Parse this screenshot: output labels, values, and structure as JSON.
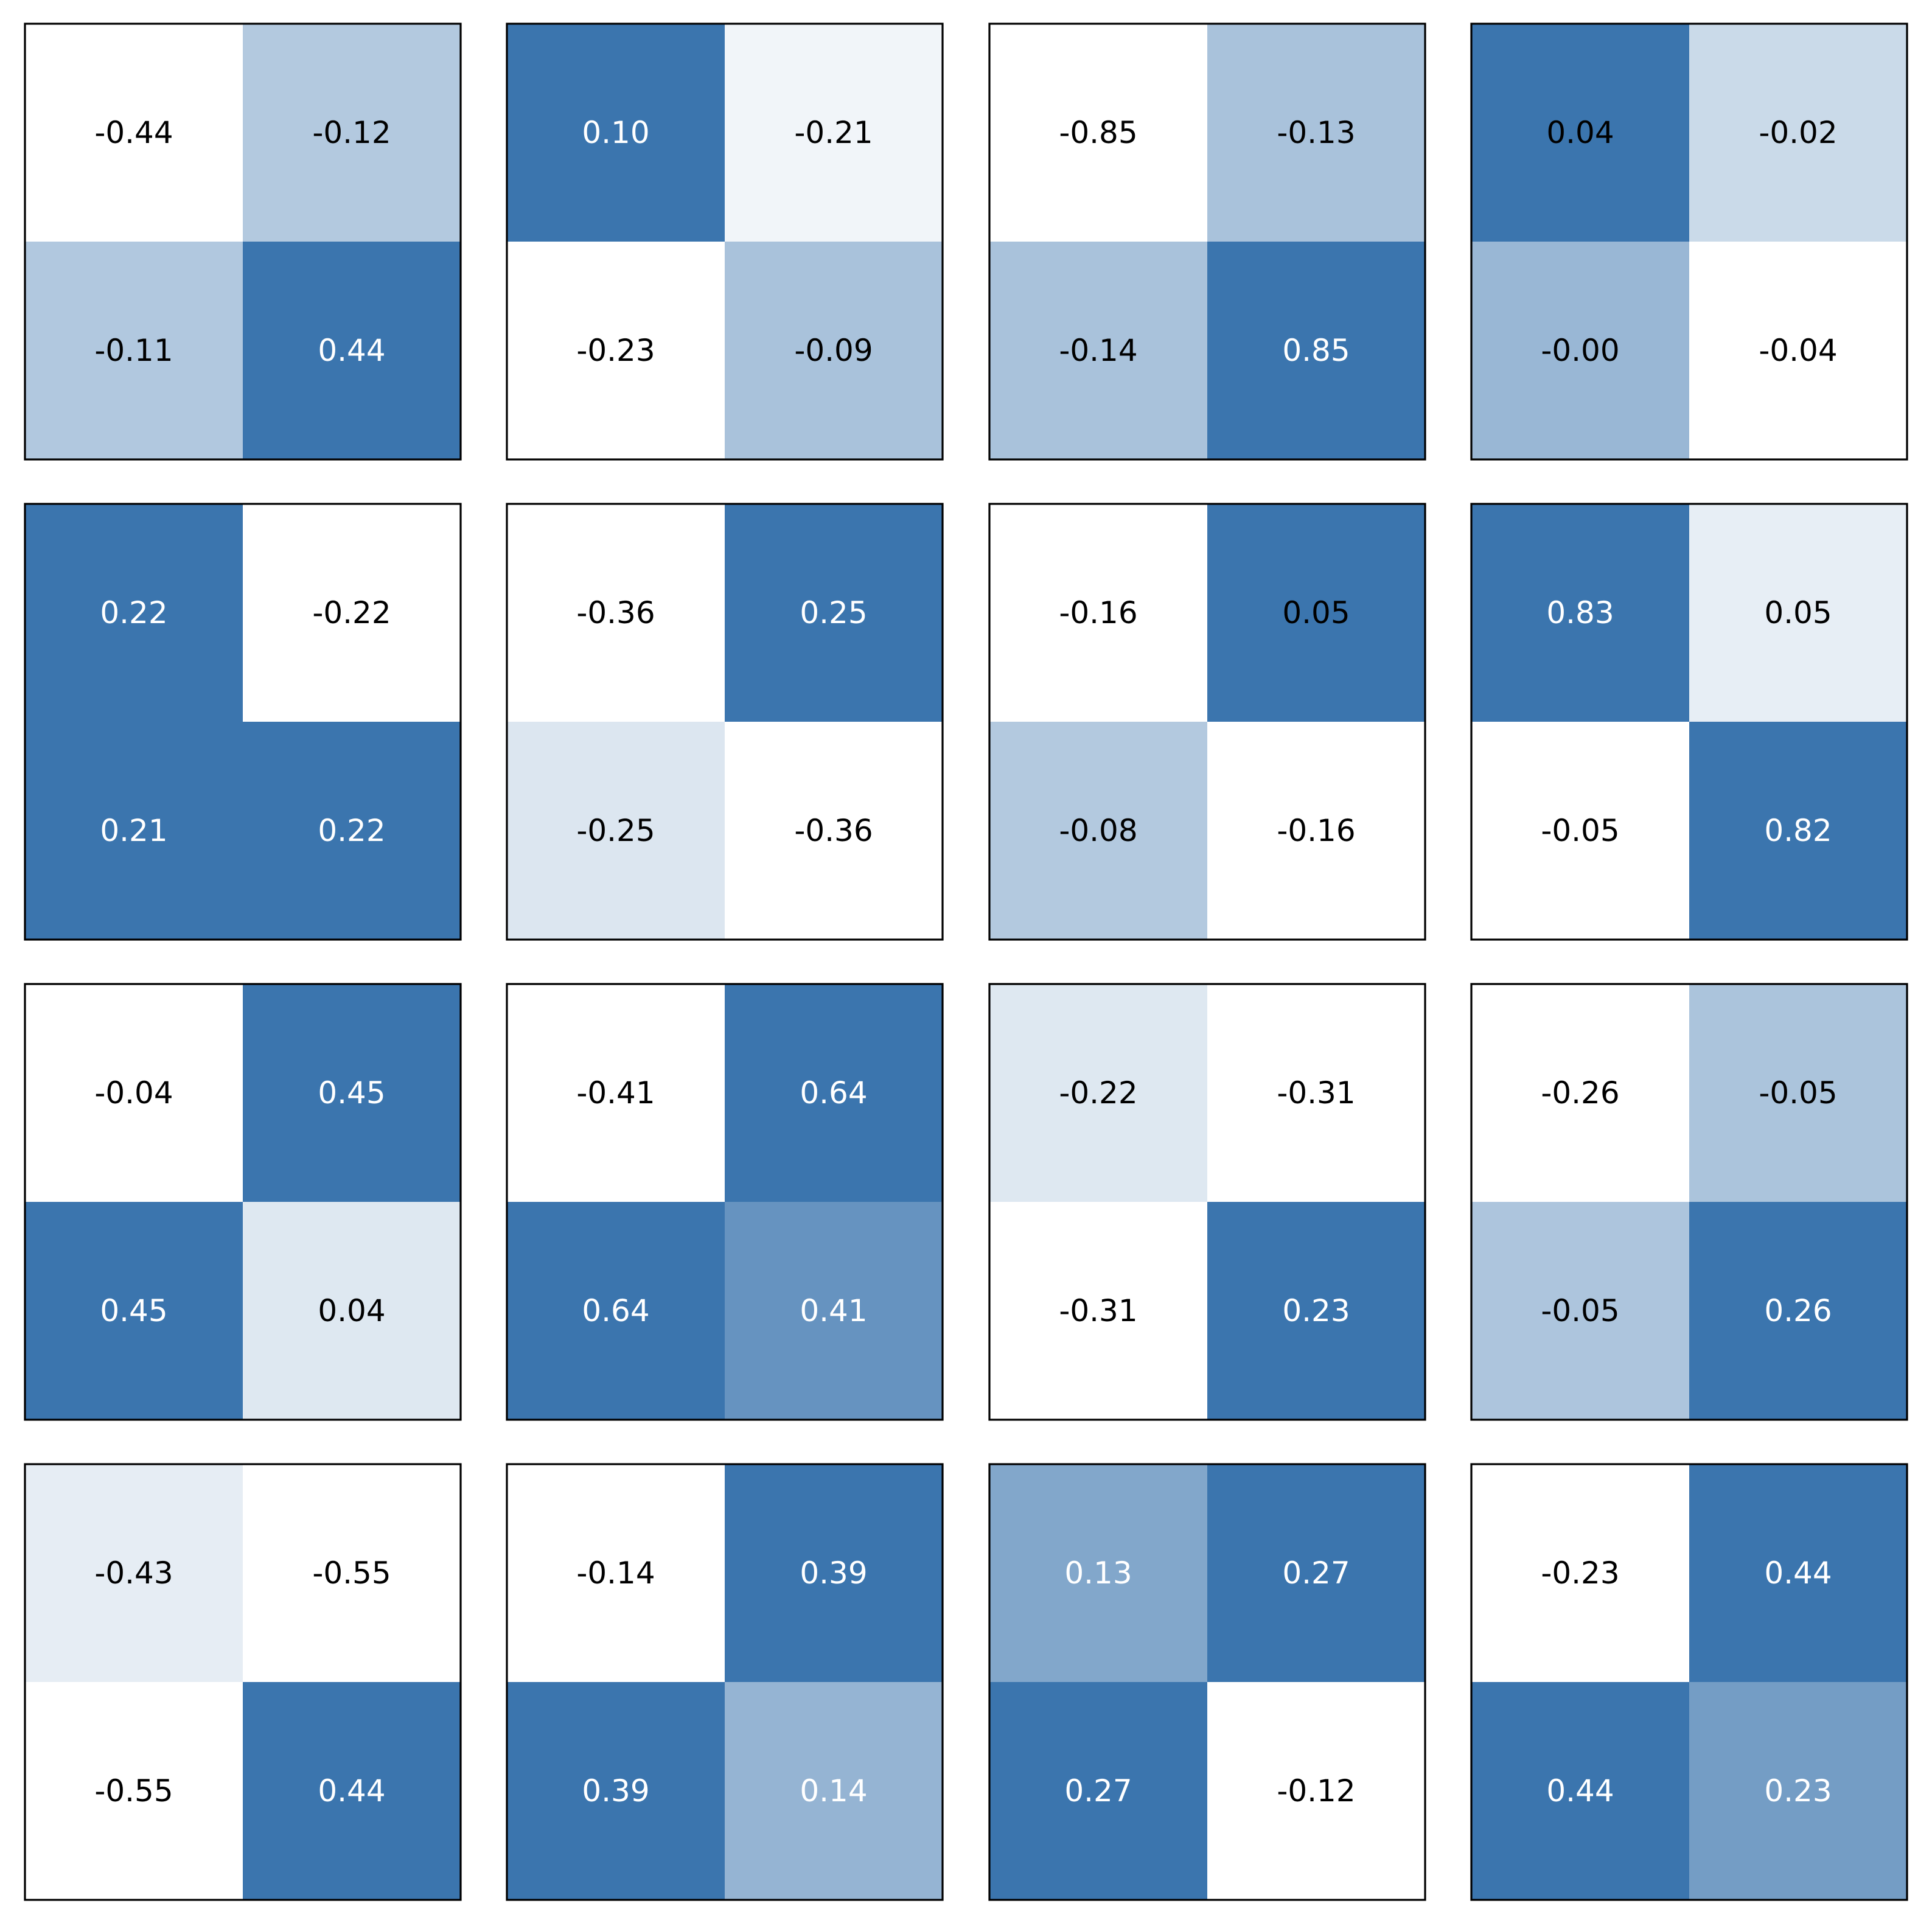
{
  "colors": {
    "dark": "#3b75ae",
    "light": "#ffffff",
    "text_on_dark": "#ffffff",
    "text_on_light": "#000000",
    "frame": "#000000"
  },
  "chart_data": [
    {
      "type": "heatmap",
      "values": [
        [
          -0.44,
          -0.12
        ],
        [
          -0.11,
          0.44
        ]
      ],
      "labels": [
        [
          "-0.44",
          "-0.12"
        ],
        [
          "-0.11",
          "0.44"
        ]
      ],
      "shade": [
        [
          0.0,
          0.39
        ],
        [
          0.4,
          1.0
        ]
      ],
      "text_dark": [
        [
          false,
          false
        ],
        [
          false,
          true
        ]
      ]
    },
    {
      "type": "heatmap",
      "values": [
        [
          0.1,
          -0.21
        ],
        [
          -0.23,
          -0.09
        ]
      ],
      "labels": [
        [
          "0.10",
          "-0.21"
        ],
        [
          "-0.23",
          "-0.09"
        ]
      ],
      "shade": [
        [
          1.0,
          0.07
        ],
        [
          0.0,
          0.44
        ]
      ],
      "text_dark": [
        [
          true,
          false
        ],
        [
          false,
          false
        ]
      ]
    },
    {
      "type": "heatmap",
      "values": [
        [
          -0.85,
          -0.13
        ],
        [
          -0.14,
          0.85
        ]
      ],
      "labels": [
        [
          "-0.85",
          "-0.13"
        ],
        [
          "-0.14",
          "0.85"
        ]
      ],
      "shade": [
        [
          0.0,
          0.44
        ],
        [
          0.44,
          1.0
        ]
      ],
      "text_dark": [
        [
          false,
          false
        ],
        [
          false,
          true
        ]
      ]
    },
    {
      "type": "heatmap",
      "values": [
        [
          0.04,
          -0.02
        ],
        [
          -0.0,
          -0.04
        ]
      ],
      "labels": [
        [
          "0.04",
          "-0.02"
        ],
        [
          "-0.00",
          "-0.04"
        ]
      ],
      "shade": [
        [
          1.0,
          0.27
        ],
        [
          0.52,
          0.0
        ]
      ],
      "text_dark": [
        [
          false,
          false
        ],
        [
          false,
          false
        ]
      ]
    },
    {
      "type": "heatmap",
      "values": [
        [
          0.22,
          -0.22
        ],
        [
          0.21,
          0.22
        ]
      ],
      "labels": [
        [
          "0.22",
          "-0.22"
        ],
        [
          "0.21",
          "0.22"
        ]
      ],
      "shade": [
        [
          1.0,
          0.0
        ],
        [
          1.0,
          1.0
        ]
      ],
      "text_dark": [
        [
          true,
          false
        ],
        [
          true,
          true
        ]
      ]
    },
    {
      "type": "heatmap",
      "values": [
        [
          -0.36,
          0.25
        ],
        [
          -0.25,
          -0.36
        ]
      ],
      "labels": [
        [
          "-0.36",
          "0.25"
        ],
        [
          "-0.25",
          "-0.36"
        ]
      ],
      "shade": [
        [
          0.0,
          1.0
        ],
        [
          0.18,
          0.0
        ]
      ],
      "text_dark": [
        [
          false,
          true
        ],
        [
          false,
          false
        ]
      ]
    },
    {
      "type": "heatmap",
      "values": [
        [
          -0.16,
          0.05
        ],
        [
          -0.08,
          -0.16
        ]
      ],
      "labels": [
        [
          "-0.16",
          "0.05"
        ],
        [
          "-0.08",
          "-0.16"
        ]
      ],
      "shade": [
        [
          0.0,
          1.0
        ],
        [
          0.39,
          0.0
        ]
      ],
      "text_dark": [
        [
          false,
          false
        ],
        [
          false,
          false
        ]
      ]
    },
    {
      "type": "heatmap",
      "values": [
        [
          0.83,
          0.05
        ],
        [
          -0.05,
          0.82
        ]
      ],
      "labels": [
        [
          "0.83",
          "0.05"
        ],
        [
          "-0.05",
          "0.82"
        ]
      ],
      "shade": [
        [
          1.0,
          0.12
        ],
        [
          0.0,
          1.0
        ]
      ],
      "text_dark": [
        [
          true,
          false
        ],
        [
          false,
          true
        ]
      ]
    },
    {
      "type": "heatmap",
      "values": [
        [
          -0.04,
          0.45
        ],
        [
          0.45,
          0.04
        ]
      ],
      "labels": [
        [
          "-0.04",
          "0.45"
        ],
        [
          "0.45",
          "0.04"
        ]
      ],
      "shade": [
        [
          0.0,
          1.0
        ],
        [
          1.0,
          0.17
        ]
      ],
      "text_dark": [
        [
          false,
          true
        ],
        [
          true,
          false
        ]
      ]
    },
    {
      "type": "heatmap",
      "values": [
        [
          -0.41,
          0.64
        ],
        [
          0.64,
          0.41
        ]
      ],
      "labels": [
        [
          "-0.41",
          "0.64"
        ],
        [
          "0.64",
          "0.41"
        ]
      ],
      "shade": [
        [
          0.0,
          1.0
        ],
        [
          1.0,
          0.78
        ]
      ],
      "text_dark": [
        [
          false,
          true
        ],
        [
          true,
          true
        ]
      ]
    },
    {
      "type": "heatmap",
      "values": [
        [
          -0.22,
          -0.31
        ],
        [
          -0.31,
          0.23
        ]
      ],
      "labels": [
        [
          "-0.22",
          "-0.31"
        ],
        [
          "-0.31",
          "0.23"
        ]
      ],
      "shade": [
        [
          0.17,
          0.0
        ],
        [
          0.0,
          1.0
        ]
      ],
      "text_dark": [
        [
          false,
          false
        ],
        [
          false,
          true
        ]
      ]
    },
    {
      "type": "heatmap",
      "values": [
        [
          -0.26,
          -0.05
        ],
        [
          -0.05,
          0.26
        ]
      ],
      "labels": [
        [
          "-0.26",
          "-0.05"
        ],
        [
          "-0.05",
          "0.26"
        ]
      ],
      "shade": [
        [
          0.0,
          0.43
        ],
        [
          0.42,
          1.0
        ]
      ],
      "text_dark": [
        [
          false,
          false
        ],
        [
          false,
          true
        ]
      ]
    },
    {
      "type": "heatmap",
      "values": [
        [
          -0.43,
          -0.55
        ],
        [
          -0.55,
          0.44
        ]
      ],
      "labels": [
        [
          "-0.43",
          "-0.55"
        ],
        [
          "-0.55",
          "0.44"
        ]
      ],
      "shade": [
        [
          0.13,
          0.0
        ],
        [
          0.0,
          1.0
        ]
      ],
      "text_dark": [
        [
          false,
          false
        ],
        [
          false,
          true
        ]
      ]
    },
    {
      "type": "heatmap",
      "values": [
        [
          -0.14,
          0.39
        ],
        [
          0.39,
          0.14
        ]
      ],
      "labels": [
        [
          "-0.14",
          "0.39"
        ],
        [
          "0.39",
          "0.14"
        ]
      ],
      "shade": [
        [
          0.0,
          1.0
        ],
        [
          1.0,
          0.54
        ]
      ],
      "text_dark": [
        [
          false,
          true
        ],
        [
          true,
          true
        ]
      ]
    },
    {
      "type": "heatmap",
      "values": [
        [
          0.13,
          0.27
        ],
        [
          0.27,
          -0.12
        ]
      ],
      "labels": [
        [
          "0.13",
          "0.27"
        ],
        [
          "0.27",
          "-0.12"
        ]
      ],
      "shade": [
        [
          0.64,
          1.0
        ],
        [
          1.0,
          0.0
        ]
      ],
      "text_dark": [
        [
          true,
          true
        ],
        [
          true,
          false
        ]
      ]
    },
    {
      "type": "heatmap",
      "values": [
        [
          -0.23,
          0.44
        ],
        [
          0.44,
          0.23
        ]
      ],
      "labels": [
        [
          "-0.23",
          "0.44"
        ],
        [
          "0.44",
          "0.23"
        ]
      ],
      "shade": [
        [
          0.0,
          1.0
        ],
        [
          1.0,
          0.71
        ]
      ],
      "text_dark": [
        [
          false,
          true
        ],
        [
          true,
          true
        ]
      ]
    }
  ]
}
